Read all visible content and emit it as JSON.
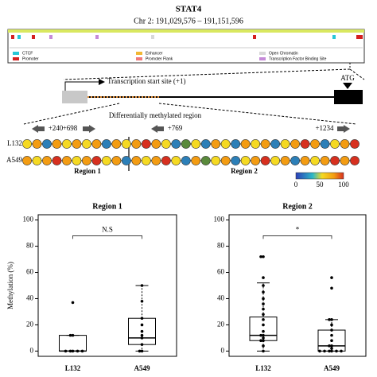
{
  "figure": {
    "title": "STAT4",
    "coords": "Chr 2: 191,029,576 – 191,151,596",
    "legend": [
      "CTCF",
      "Enhancer",
      "Open Chromatin",
      "Promoter",
      "Promoter Flank",
      "Transcription Factor Binding Site"
    ],
    "legend_colors": [
      "#27c7d6",
      "#f2b733",
      "#d8d8d8",
      "#d42020",
      "#f07a7a",
      "#c58ad8"
    ],
    "tss": "Transcription start site (+1)",
    "atg": "ATG",
    "dmr": "Differentially methylated region",
    "positions": [
      "+240",
      "+698",
      "+769",
      "+1234"
    ],
    "rows": [
      {
        "name": "L132",
        "colors": [
          "#f5d922",
          "#f39c12",
          "#2c7fb8",
          "#f39c12",
          "#f5d922",
          "#f39c12",
          "#f5d922",
          "#f39c12",
          "#2c7fb8",
          "#f39c12",
          "#f5d922",
          "#f39c12",
          "#d7301f",
          "#f39c12",
          "#f5d922",
          "#2c7fb8",
          "#5a8a3c",
          "#f5d922",
          "#2c7fb8",
          "#f39c12",
          "#f5d922",
          "#2c7fb8",
          "#f39c12",
          "#f5d922",
          "#f39c12",
          "#2c7fb8",
          "#f5d922",
          "#f39c12",
          "#d7301f",
          "#f39c12",
          "#2c7fb8",
          "#f5d922",
          "#f39c12",
          "#d7301f"
        ]
      },
      {
        "name": "A549",
        "colors": [
          "#f39c12",
          "#f5d922",
          "#f39c12",
          "#d7301f",
          "#f39c12",
          "#f5d922",
          "#f39c12",
          "#d7301f",
          "#f5d922",
          "#f39c12",
          "#2c7fb8",
          "#f39c12",
          "#f5d922",
          "#f39c12",
          "#d7301f",
          "#f5d922",
          "#2c7fb8",
          "#f39c12",
          "#5a8a3c",
          "#f5d922",
          "#f39c12",
          "#2c7fb8",
          "#f5d922",
          "#f39c12",
          "#d7301f",
          "#f5d922",
          "#f39c12",
          "#2c7fb8",
          "#f39c12",
          "#f5d922",
          "#f39c12",
          "#d7301f",
          "#f39c12",
          "#d7301f"
        ]
      }
    ],
    "regions": [
      "Region 1",
      "Region 2"
    ],
    "colorbar_ticks": [
      0,
      50,
      100
    ]
  },
  "chart_data": [
    {
      "type": "box",
      "title": "Region 1",
      "y_label": "Methylation (%)",
      "annotation": "N.S",
      "categories": [
        "L132",
        "A549"
      ],
      "ylim": [
        -4,
        104
      ],
      "yticks": [
        0,
        20,
        40,
        60,
        80,
        100
      ],
      "boxes": [
        {
          "min": 0,
          "q1": 0,
          "median": 0,
          "q3": 12,
          "max": 12
        },
        {
          "min": 0,
          "q1": 5,
          "median": 10,
          "q3": 25,
          "max": 50
        }
      ],
      "points": [
        [
          0,
          0,
          0,
          0,
          0,
          12,
          12,
          37
        ],
        [
          0,
          0,
          5,
          10,
          12,
          15,
          20,
          25,
          38,
          50
        ]
      ]
    },
    {
      "type": "box",
      "title": "Region 2",
      "annotation": "*",
      "categories": [
        "L132",
        "A549"
      ],
      "ylim": [
        -4,
        104
      ],
      "yticks": [
        0,
        20,
        40,
        60,
        80,
        100
      ],
      "boxes": [
        {
          "min": 0,
          "q1": 8,
          "median": 12,
          "q3": 26,
          "max": 52
        },
        {
          "min": 0,
          "q1": 0,
          "median": 4,
          "q3": 16,
          "max": 24
        }
      ],
      "points": [
        [
          0,
          4,
          8,
          8,
          10,
          12,
          12,
          15,
          20,
          24,
          28,
          32,
          36,
          40,
          45,
          50,
          56,
          72,
          72
        ],
        [
          0,
          0,
          0,
          0,
          0,
          0,
          2,
          4,
          4,
          8,
          12,
          16,
          20,
          24,
          24,
          48,
          56
        ]
      ]
    }
  ]
}
